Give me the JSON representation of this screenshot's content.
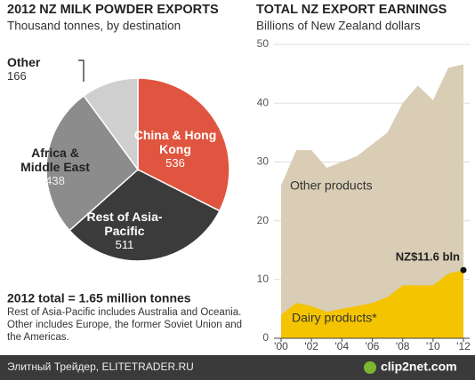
{
  "chart_data": [
    {
      "type": "pie",
      "title": "2012 NZ MILK POWDER EXPORTS",
      "subtitle": "Thousand tonnes, by destination",
      "categories": [
        "China & Hong Kong",
        "Rest of Asia-Pacific",
        "Africa & Middle East",
        "Other"
      ],
      "values": [
        536,
        511,
        438,
        166
      ],
      "colors": [
        "#e0553f",
        "#3b3b3b",
        "#8c8c8c",
        "#cfcfcf"
      ],
      "total_label": "2012 total = 1.65 million tonnes",
      "note": "Rest of Asia-Pacific includes Australia and Oceania. Other includes Europe, the former Soviet Union and the Americas."
    },
    {
      "type": "area",
      "title": "TOTAL NZ EXPORT EARNINGS",
      "subtitle": "Billions of New Zealand dollars",
      "x": [
        2000,
        2001,
        2002,
        2003,
        2004,
        2005,
        2006,
        2007,
        2008,
        2009,
        2010,
        2011,
        2012
      ],
      "series": [
        {
          "name": "Dairy products*",
          "color": "#f5c400",
          "values": [
            4,
            6,
            5.5,
            4.5,
            5,
            5.5,
            6,
            7,
            9,
            9,
            9,
            11,
            11.6
          ]
        },
        {
          "name": "Other products",
          "color": "#d9cdb5",
          "values": [
            22,
            26,
            26.5,
            24.5,
            25,
            25.5,
            27,
            28,
            31,
            34,
            31.5,
            35,
            35
          ]
        }
      ],
      "stacked": true,
      "annotation": "NZ$11.6 bln",
      "xlim": [
        2000,
        2012
      ],
      "xticks": [
        {
          "value": 2000,
          "label": "'00"
        },
        {
          "value": 2002,
          "label": "'02"
        },
        {
          "value": 2004,
          "label": "'04"
        },
        {
          "value": 2006,
          "label": "'06"
        },
        {
          "value": 2008,
          "label": "'08"
        },
        {
          "value": 2010,
          "label": "'10"
        },
        {
          "value": 2012,
          "label": "'12"
        }
      ],
      "ylim": [
        0,
        50
      ],
      "yticks": [
        0,
        10,
        20,
        30,
        40,
        50
      ],
      "grid": true
    }
  ],
  "footer_bar": {
    "source": "Элитный Трейдер, ELITETRADER.RU",
    "brand": "clip2net.com"
  }
}
